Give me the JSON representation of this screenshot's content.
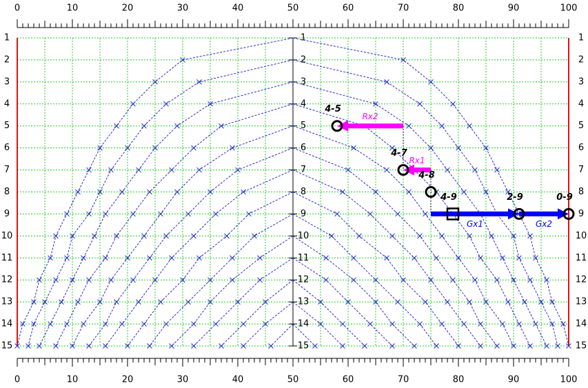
{
  "diagram": {
    "xlim": [
      0,
      100
    ],
    "xticks": [
      0,
      10,
      20,
      30,
      40,
      50,
      60,
      70,
      80,
      90,
      100
    ],
    "grid_x": [
      0,
      5,
      10,
      15,
      20,
      25,
      30,
      35,
      40,
      45,
      50,
      55,
      60,
      65,
      70,
      75,
      80,
      85,
      90,
      95,
      100
    ],
    "rows": [
      1,
      2,
      3,
      4,
      5,
      6,
      7,
      8,
      9,
      10,
      11,
      12,
      13,
      14,
      15
    ],
    "center": 50,
    "curve_color": "#2a2ad0",
    "grid_color": "#22cc22",
    "border_color": "#dd1111",
    "curves": [
      {
        "start_row": 1,
        "offsets": [
          0,
          20,
          25,
          29,
          32,
          35,
          37,
          39,
          41,
          43,
          44,
          46,
          47,
          49,
          50
        ]
      },
      {
        "start_row": 2,
        "offsets": [
          0,
          17,
          23,
          27,
          30,
          33,
          35,
          37,
          40,
          41,
          43,
          45,
          47,
          48
        ]
      },
      {
        "start_row": 3,
        "offsets": [
          0,
          15,
          21,
          25,
          28,
          31,
          34,
          36,
          38,
          40,
          42,
          44,
          46
        ]
      },
      {
        "start_row": 4,
        "offsets": [
          0,
          13,
          18,
          22,
          26,
          29,
          32,
          34,
          37,
          39,
          41,
          43
        ]
      },
      {
        "start_row": 5,
        "offsets": [
          0,
          11,
          17,
          21,
          24,
          27,
          30,
          33,
          35,
          38,
          40
        ]
      },
      {
        "start_row": 6,
        "offsets": [
          0,
          10,
          15,
          19,
          23,
          26,
          29,
          32,
          34,
          37
        ]
      },
      {
        "start_row": 7,
        "offsets": [
          0,
          9,
          14,
          18,
          22,
          25,
          28,
          31,
          34
        ]
      },
      {
        "start_row": 8,
        "offsets": [
          0,
          8,
          12,
          17,
          20,
          24,
          27,
          30
        ]
      },
      {
        "start_row": 9,
        "offsets": [
          0,
          7,
          11,
          15,
          19,
          23,
          26
        ]
      },
      {
        "start_row": 10,
        "offsets": [
          0,
          6,
          11,
          15,
          18,
          22
        ]
      },
      {
        "start_row": 11,
        "offsets": [
          0,
          6,
          10,
          14,
          18
        ]
      },
      {
        "start_row": 12,
        "offsets": [
          0,
          5,
          9,
          13
        ]
      },
      {
        "start_row": 13,
        "offsets": [
          0,
          5,
          9
        ]
      },
      {
        "start_row": 14,
        "offsets": [
          0,
          4
        ]
      }
    ],
    "points": [
      {
        "label": "4-5",
        "x": 58,
        "row": 5,
        "shape": "circle"
      },
      {
        "label": "4-7",
        "x": 70,
        "row": 7,
        "shape": "circle"
      },
      {
        "label": "4-8",
        "x": 75,
        "row": 8,
        "shape": "circle"
      },
      {
        "label": "4-9",
        "x": 79,
        "row": 9,
        "shape": "square"
      },
      {
        "label": "2-9",
        "x": 91,
        "row": 9,
        "shape": "circle"
      },
      {
        "label": "0-9",
        "x": 100,
        "row": 9,
        "shape": "circle"
      }
    ],
    "arrows": [
      {
        "label": "Rx2",
        "from": 70,
        "to": 58,
        "row": 5,
        "color": "#ff00ff",
        "label_side": "above"
      },
      {
        "label": "Rx1",
        "from": 75,
        "to": 70,
        "row": 7,
        "color": "#ff00ff",
        "label_side": "above"
      },
      {
        "label": "Gx1",
        "from": 75,
        "to": 91,
        "row": 9,
        "color": "#0000ff",
        "label_side": "below"
      },
      {
        "label": "Gx2",
        "from": 91,
        "to": 100,
        "row": 9,
        "color": "#0000ff",
        "label_side": "below"
      }
    ],
    "guides": [
      {
        "x": 70,
        "rows": [
          5,
          7
        ]
      },
      {
        "x": 75,
        "rows": [
          7,
          9
        ]
      }
    ]
  }
}
